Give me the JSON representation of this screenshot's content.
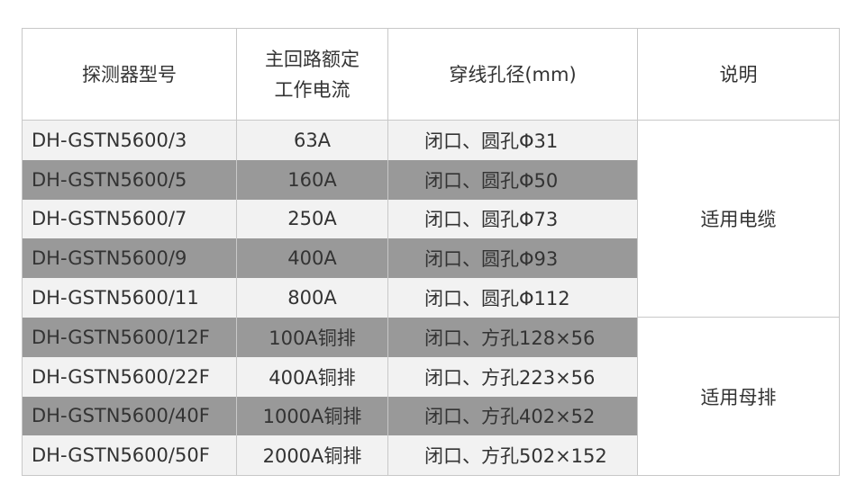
{
  "headers": {
    "model": "探测器型号",
    "current_line1": "主回路额定",
    "current_line2": "工作电流",
    "hole": "穿线孔径(mm)",
    "note": "说明"
  },
  "rows": [
    {
      "model": "DH-GSTN5600/3",
      "current": "63A",
      "hole": "闭口、圆孔Φ31"
    },
    {
      "model": "DH-GSTN5600/5",
      "current": "160A",
      "hole": "闭口、圆孔Φ50"
    },
    {
      "model": "DH-GSTN5600/7",
      "current": "250A",
      "hole": "闭口、圆孔Φ73"
    },
    {
      "model": "DH-GSTN5600/9",
      "current": "400A",
      "hole": "闭口、圆孔Φ93"
    },
    {
      "model": "DH-GSTN5600/11",
      "current": "800A",
      "hole": "闭口、圆孔Φ112"
    },
    {
      "model": "DH-GSTN5600/12F",
      "current": "100A铜排",
      "hole": "闭口、方孔128×56"
    },
    {
      "model": "DH-GSTN5600/22F",
      "current": "400A铜排",
      "hole": "闭口、方孔223×56"
    },
    {
      "model": "DH-GSTN5600/40F",
      "current": "1000A铜排",
      "hole": "闭口、方孔402×52"
    },
    {
      "model": "DH-GSTN5600/50F",
      "current": "2000A铜排",
      "hole": "闭口、方孔502×152"
    }
  ],
  "notes": {
    "cable": "适用电缆",
    "busbar": "适用母排"
  },
  "colors": {
    "light_row": "#f2f2f2",
    "dark_row": "#999999",
    "border": "#c8c8c8",
    "text": "#333333"
  }
}
